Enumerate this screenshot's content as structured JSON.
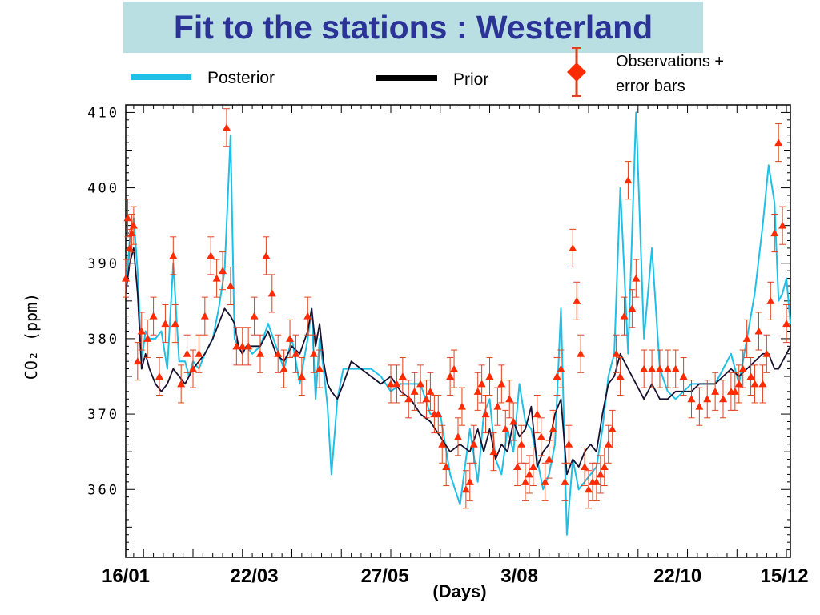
{
  "title": "Fit to the stations : Westerland",
  "legend": {
    "posterior_label": "Posterior",
    "prior_label": "Prior",
    "observations_line1": "Observations +",
    "observations_line2": "error bars"
  },
  "colors": {
    "title_background": "#b9dfe2",
    "title_text": "#2b3397",
    "posterior": "#1ec0e8",
    "prior": "#1a1030",
    "observations": "#ff2a00",
    "error_bars": "#e0401c"
  },
  "chart_data": {
    "type": "line",
    "title": "Fit to the stations : Westerland",
    "xlabel": "(Days)",
    "ylabel": "CO₂ (ppm)",
    "x_tick_labels": [
      "16/01",
      "22/03",
      "27/05",
      "3/08",
      "22/10",
      "15/12"
    ],
    "x_tick_days": [
      16,
      81,
      147,
      215,
      295,
      349
    ],
    "xlim_days": [
      16,
      352
    ],
    "ylim": [
      351,
      411
    ],
    "y_ticks": [
      360,
      370,
      380,
      390,
      400,
      410
    ],
    "legend_position": "top",
    "grid": false,
    "series": [
      {
        "name": "Posterior",
        "day": [
          16,
          18,
          20,
          22,
          24,
          26,
          28,
          31,
          34,
          37,
          40,
          43,
          46,
          48,
          50,
          53,
          56,
          60,
          63,
          66,
          69,
          71,
          73,
          75,
          77,
          80,
          84,
          88,
          92,
          96,
          100,
          104,
          108,
          110,
          112,
          114,
          116,
          118,
          120,
          123,
          126,
          130,
          135,
          140,
          145,
          150,
          155,
          160,
          165,
          170,
          175,
          180,
          185,
          190,
          194,
          197,
          200,
          203,
          206,
          209,
          212,
          215,
          218,
          221,
          224,
          227,
          230,
          233,
          236,
          239,
          242,
          245,
          248,
          251,
          254,
          257,
          260,
          263,
          266,
          270,
          274,
          278,
          282,
          286,
          290,
          294,
          298,
          302,
          306,
          310,
          314,
          318,
          322,
          326,
          330,
          334,
          338,
          341,
          344,
          346,
          348,
          350,
          352
        ],
        "values": [
          386,
          393,
          396,
          389,
          377,
          381,
          380,
          380,
          381,
          376,
          390,
          377,
          377,
          375,
          377,
          376,
          378,
          380,
          384,
          389,
          407,
          380,
          379,
          378,
          379,
          378,
          379,
          382,
          379,
          376,
          380,
          374,
          380,
          384,
          372,
          380,
          376,
          371,
          362,
          372,
          376,
          376,
          376,
          376,
          375,
          373,
          374,
          374,
          374,
          370,
          370,
          362,
          358,
          368,
          361,
          370,
          372,
          364,
          362,
          368,
          365,
          374,
          369,
          368,
          364,
          360,
          362,
          366,
          384,
          354,
          364,
          360,
          361,
          362,
          363,
          368,
          375,
          378,
          400,
          378,
          410,
          380,
          392,
          376,
          373,
          372,
          373,
          374,
          374,
          374,
          374,
          376,
          378,
          374,
          380,
          386,
          395,
          403,
          398,
          385,
          386,
          388,
          382
        ]
      },
      {
        "name": "Prior",
        "day": [
          16,
          18,
          20,
          22,
          24,
          26,
          28,
          31,
          34,
          37,
          40,
          43,
          46,
          48,
          50,
          53,
          56,
          60,
          63,
          66,
          69,
          71,
          73,
          75,
          77,
          80,
          84,
          88,
          92,
          96,
          100,
          104,
          108,
          110,
          112,
          114,
          116,
          118,
          120,
          123,
          126,
          130,
          135,
          140,
          145,
          150,
          155,
          160,
          165,
          170,
          175,
          180,
          185,
          190,
          194,
          197,
          200,
          203,
          206,
          209,
          212,
          215,
          218,
          221,
          224,
          227,
          230,
          233,
          236,
          239,
          242,
          245,
          248,
          251,
          254,
          257,
          260,
          263,
          266,
          270,
          274,
          278,
          282,
          286,
          290,
          294,
          298,
          302,
          306,
          310,
          314,
          318,
          322,
          326,
          330,
          334,
          338,
          341,
          344,
          346,
          348,
          350,
          352
        ],
        "values": [
          386,
          390,
          392,
          386,
          376,
          378,
          376,
          374,
          373,
          374,
          376,
          375,
          374,
          375,
          376,
          377,
          378,
          380,
          382,
          384,
          383,
          382,
          379,
          378,
          379,
          379,
          379,
          381,
          378,
          377,
          379,
          378,
          381,
          384,
          379,
          382,
          377,
          374,
          373,
          372,
          374,
          377,
          376,
          375,
          374,
          375,
          373,
          372,
          370,
          369,
          367,
          365,
          366,
          365,
          368,
          365,
          368,
          364,
          366,
          365,
          369,
          367,
          368,
          371,
          363,
          365,
          366,
          370,
          372,
          362,
          364,
          363,
          365,
          366,
          365,
          370,
          374,
          375,
          378,
          376,
          374,
          372,
          374,
          372,
          372,
          373,
          373,
          373,
          374,
          374,
          374,
          375,
          376,
          375,
          376,
          377,
          378,
          378,
          376,
          376,
          377,
          378,
          379
        ]
      },
      {
        "name": "Observations",
        "day": [
          16,
          17,
          18,
          19,
          20,
          22,
          24,
          27,
          30,
          33,
          36,
          40,
          41,
          44,
          47,
          50,
          53,
          56,
          59,
          62,
          65,
          67,
          69,
          72,
          75,
          78,
          81,
          84,
          87,
          90,
          93,
          96,
          99,
          102,
          105,
          108,
          111,
          114,
          150,
          153,
          156,
          159,
          162,
          165,
          168,
          170,
          172,
          174,
          176,
          178,
          180,
          182,
          184,
          186,
          188,
          190,
          192,
          194,
          196,
          198,
          200,
          202,
          204,
          206,
          208,
          210,
          212,
          214,
          216,
          218,
          220,
          222,
          224,
          226,
          228,
          230,
          232,
          234,
          236,
          238,
          240,
          242,
          244,
          246,
          248,
          250,
          252,
          254,
          256,
          258,
          260,
          262,
          264,
          266,
          268,
          270,
          272,
          274,
          278,
          282,
          286,
          290,
          294,
          298,
          302,
          306,
          310,
          314,
          318,
          322,
          324,
          326,
          328,
          330,
          332,
          334,
          336,
          338,
          340,
          342,
          344,
          346,
          348,
          350
        ],
        "values": [
          388,
          396,
          392,
          394,
          395,
          377,
          381,
          380,
          383,
          375,
          382,
          391,
          382,
          374,
          378,
          376,
          378,
          383,
          391,
          388,
          389,
          408,
          387,
          379,
          379,
          379,
          383,
          378,
          391,
          386,
          378,
          376,
          380,
          378,
          375,
          383,
          378,
          376,
          374,
          374,
          375,
          372,
          373,
          374,
          372,
          373,
          370,
          370,
          366,
          363,
          375,
          376,
          367,
          371,
          360,
          361,
          366,
          373,
          374,
          370,
          375,
          365,
          371,
          374,
          368,
          372,
          369,
          363,
          366,
          361,
          362,
          363,
          370,
          367,
          361,
          364,
          368,
          375,
          376,
          361,
          366,
          392,
          385,
          378,
          363,
          360,
          361,
          361,
          362,
          363,
          366,
          368,
          378,
          375,
          383,
          401,
          384,
          388,
          376,
          376,
          376,
          376,
          376,
          375,
          372,
          371,
          372,
          373,
          372,
          373,
          373,
          374,
          376,
          380,
          375,
          374,
          381,
          374,
          378,
          385,
          394,
          406,
          395,
          382
        ]
      }
    ]
  }
}
